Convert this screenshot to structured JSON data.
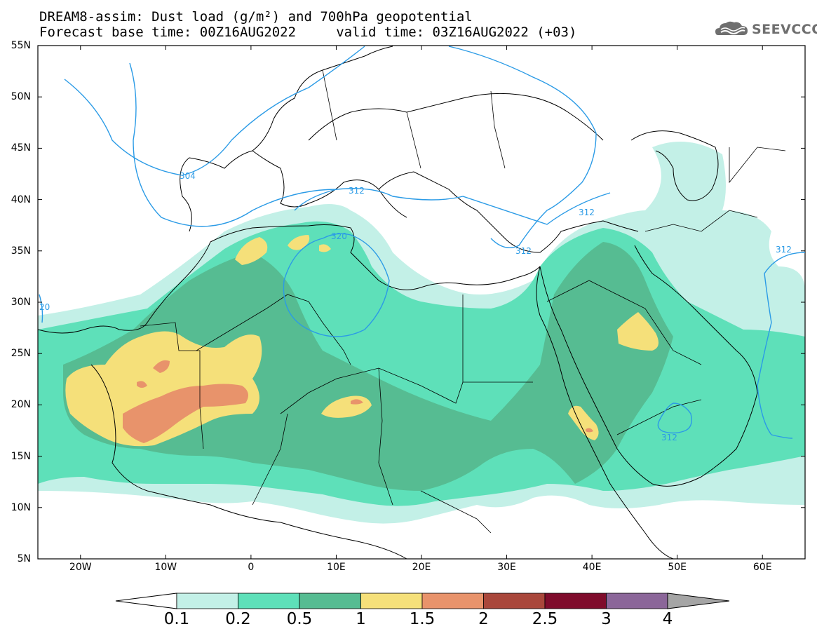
{
  "title_line1": "DREAM8-assim: Dust load (g/m²) and 700hPa geopotential",
  "title_line2": "Forecast base time: 00Z16AUG2022     valid time: 03Z16AUG2022 (+03)",
  "logo": {
    "text": "SEEVCCC",
    "icon": "cloud-logo-icon"
  },
  "map": {
    "lon_range": [
      -25,
      65
    ],
    "lat_range": [
      5,
      55
    ],
    "lat_labels": [
      "55N",
      "50N",
      "45N",
      "40N",
      "35N",
      "30N",
      "25N",
      "20N",
      "15N",
      "10N",
      "5N"
    ],
    "lon_labels": [
      "20W",
      "10W",
      "0",
      "10E",
      "20E",
      "30E",
      "40E",
      "50E",
      "60E"
    ],
    "contour_labels": [
      "304",
      "312",
      "320",
      "312",
      "312",
      "312",
      "312",
      "20"
    ]
  },
  "colorbar": {
    "labels": [
      "0.1",
      "0.2",
      "0.5",
      "1",
      "1.5",
      "2",
      "2.5",
      "3",
      "4"
    ],
    "colors": [
      "#c3f0e7",
      "#5ee0b9",
      "#56bc92",
      "#f5e07a",
      "#e8936b",
      "#a9473b",
      "#7f0c2c",
      "#8b6699"
    ],
    "under_color": "#ffffff",
    "over_color": "#a5a5a5"
  },
  "colors": {
    "contour": "#2b9be6",
    "coast": "#000000"
  }
}
